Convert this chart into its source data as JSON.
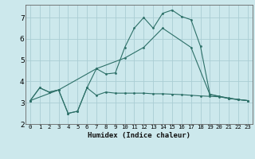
{
  "xlabel": "Humidex (Indice chaleur)",
  "xlim": [
    -0.5,
    23.5
  ],
  "ylim": [
    2,
    7.6
  ],
  "yticks": [
    2,
    3,
    4,
    5,
    6,
    7
  ],
  "xticks": [
    0,
    1,
    2,
    3,
    4,
    5,
    6,
    7,
    8,
    9,
    10,
    11,
    12,
    13,
    14,
    15,
    16,
    17,
    18,
    19,
    20,
    21,
    22,
    23
  ],
  "bg_color": "#cce8ec",
  "grid_color": "#aacdd4",
  "line_color": "#2d7068",
  "line1_x": [
    0,
    1,
    2,
    3,
    4,
    5,
    6,
    7,
    8,
    9,
    10,
    11,
    12,
    13,
    14,
    15,
    16,
    17,
    18,
    19,
    20,
    21,
    22,
    23
  ],
  "line1_y": [
    3.1,
    3.7,
    3.5,
    3.6,
    2.5,
    2.6,
    3.7,
    3.35,
    3.5,
    3.45,
    3.45,
    3.45,
    3.45,
    3.42,
    3.42,
    3.4,
    3.38,
    3.35,
    3.32,
    3.3,
    3.28,
    3.2,
    3.15,
    3.1
  ],
  "line2_x": [
    0,
    1,
    2,
    3,
    4,
    5,
    6,
    7,
    8,
    9,
    10,
    11,
    12,
    13,
    14,
    15,
    16,
    17,
    18,
    19,
    20,
    21,
    22,
    23
  ],
  "line2_y": [
    3.1,
    3.7,
    3.5,
    3.6,
    2.5,
    2.6,
    3.7,
    4.6,
    4.35,
    4.4,
    5.6,
    6.5,
    7.0,
    6.5,
    7.2,
    7.35,
    7.05,
    6.9,
    5.65,
    3.4,
    3.3,
    3.2,
    3.15,
    3.1
  ],
  "line3_x": [
    0,
    3,
    7,
    10,
    12,
    14,
    17,
    19,
    21,
    22,
    23
  ],
  "line3_y": [
    3.1,
    3.6,
    4.6,
    5.1,
    5.6,
    6.5,
    5.6,
    3.38,
    3.22,
    3.15,
    3.1
  ]
}
